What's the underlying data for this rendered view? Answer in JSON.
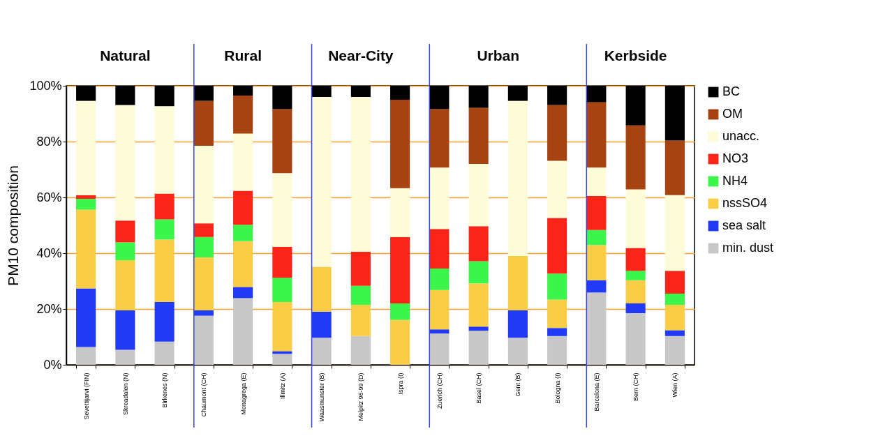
{
  "chart_data": {
    "type": "bar",
    "stacked": true,
    "ylabel": "PM10 composition",
    "categories": [
      "Sevettijarvi (FIN)",
      "Skreadalen (N)",
      "Birkenes (N)",
      "Chaumont (CH)",
      "Monagrega (E)",
      "Illmitz (A)",
      "Waasmunster (B)",
      "Melpitz 96-99 (D)",
      "Ispra (I)",
      "Zuerich (CH)",
      "Basel (CH)",
      "Gent (B)",
      "Bologna (I)",
      "Barcelona (E)",
      "Bern (CH)",
      "Wien (A)"
    ],
    "series": [
      {
        "name": "min. dust",
        "color": "#c8c8c8",
        "values": [
          6.4,
          5.4,
          8.3,
          17.6,
          23.9,
          3.9,
          9.7,
          10.3,
          0,
          11.2,
          12.2,
          9.7,
          10.3,
          25.9,
          18.5,
          10.3
        ]
      },
      {
        "name": "sea salt",
        "color": "#2239f5",
        "values": [
          21.0,
          14.1,
          14.2,
          1.9,
          4.0,
          1.0,
          9.3,
          0,
          0,
          1.5,
          1.5,
          9.8,
          2.9,
          4.4,
          3.5,
          2.1
        ]
      },
      {
        "name": "nssSO4",
        "color": "#facd46",
        "values": [
          28.2,
          18.0,
          22.4,
          19.0,
          16.4,
          17.6,
          16.1,
          11.2,
          16.1,
          14.1,
          15.5,
          19.5,
          10.2,
          12.6,
          8.3,
          9.1
        ]
      },
      {
        "name": "NH4",
        "color": "#3cf54a",
        "values": [
          3.9,
          6.4,
          7.2,
          7.3,
          5.9,
          8.7,
          0,
          6.8,
          5.9,
          7.7,
          7.9,
          0,
          9.3,
          5.4,
          3.4,
          4.0
        ]
      },
      {
        "name": "NO3",
        "color": "#fa2418",
        "values": [
          1.3,
          7.8,
          9.3,
          4.9,
          12.2,
          11.1,
          0,
          12.2,
          23.8,
          14.2,
          12.6,
          0,
          19.9,
          12.2,
          8.2,
          8.2
        ]
      },
      {
        "name": "unacc.",
        "color": "#fcfcd9",
        "values": [
          33.8,
          41.4,
          31.3,
          27.8,
          20.5,
          26.4,
          60.9,
          55.5,
          17.5,
          22.0,
          22.3,
          55.6,
          20.5,
          10.2,
          21.0,
          27.1
        ]
      },
      {
        "name": "OM",
        "color": "#a64311",
        "values": [
          0,
          0,
          0,
          16.1,
          13.6,
          22.9,
          0,
          0,
          31.7,
          20.9,
          20.1,
          0,
          20.0,
          23.4,
          22.9,
          19.6
        ]
      },
      {
        "name": "BC",
        "color": "#000000",
        "values": [
          5.4,
          6.9,
          7.3,
          5.4,
          3.5,
          8.4,
          4.0,
          4.0,
          5.0,
          8.4,
          7.9,
          5.4,
          6.9,
          5.9,
          14.2,
          19.6
        ]
      }
    ],
    "ylim": [
      0,
      100
    ],
    "yticks": [
      {
        "value": 0,
        "label": "0%"
      },
      {
        "value": 20,
        "label": "20%"
      },
      {
        "value": 40,
        "label": "40%"
      },
      {
        "value": 60,
        "label": "60%"
      },
      {
        "value": 80,
        "label": "80%"
      },
      {
        "value": 100,
        "label": "100%"
      }
    ],
    "grid": "y",
    "legend": "right",
    "ref_lines": [
      {
        "axis": "x",
        "value": "Chaumont (CH)",
        "color": "#3344ee"
      },
      {
        "axis": "x",
        "value": "Waasmunster (B)",
        "color": "#3344ee"
      },
      {
        "axis": "x",
        "value": "Zuerich (CH)",
        "color": "#3344ee"
      },
      {
        "axis": "x",
        "value": "Barcelona (E)",
        "color": "#3344ee"
      }
    ],
    "annotations": [
      "Natural",
      "Rural",
      "Near-City",
      "Urban",
      "Kerbside"
    ]
  }
}
